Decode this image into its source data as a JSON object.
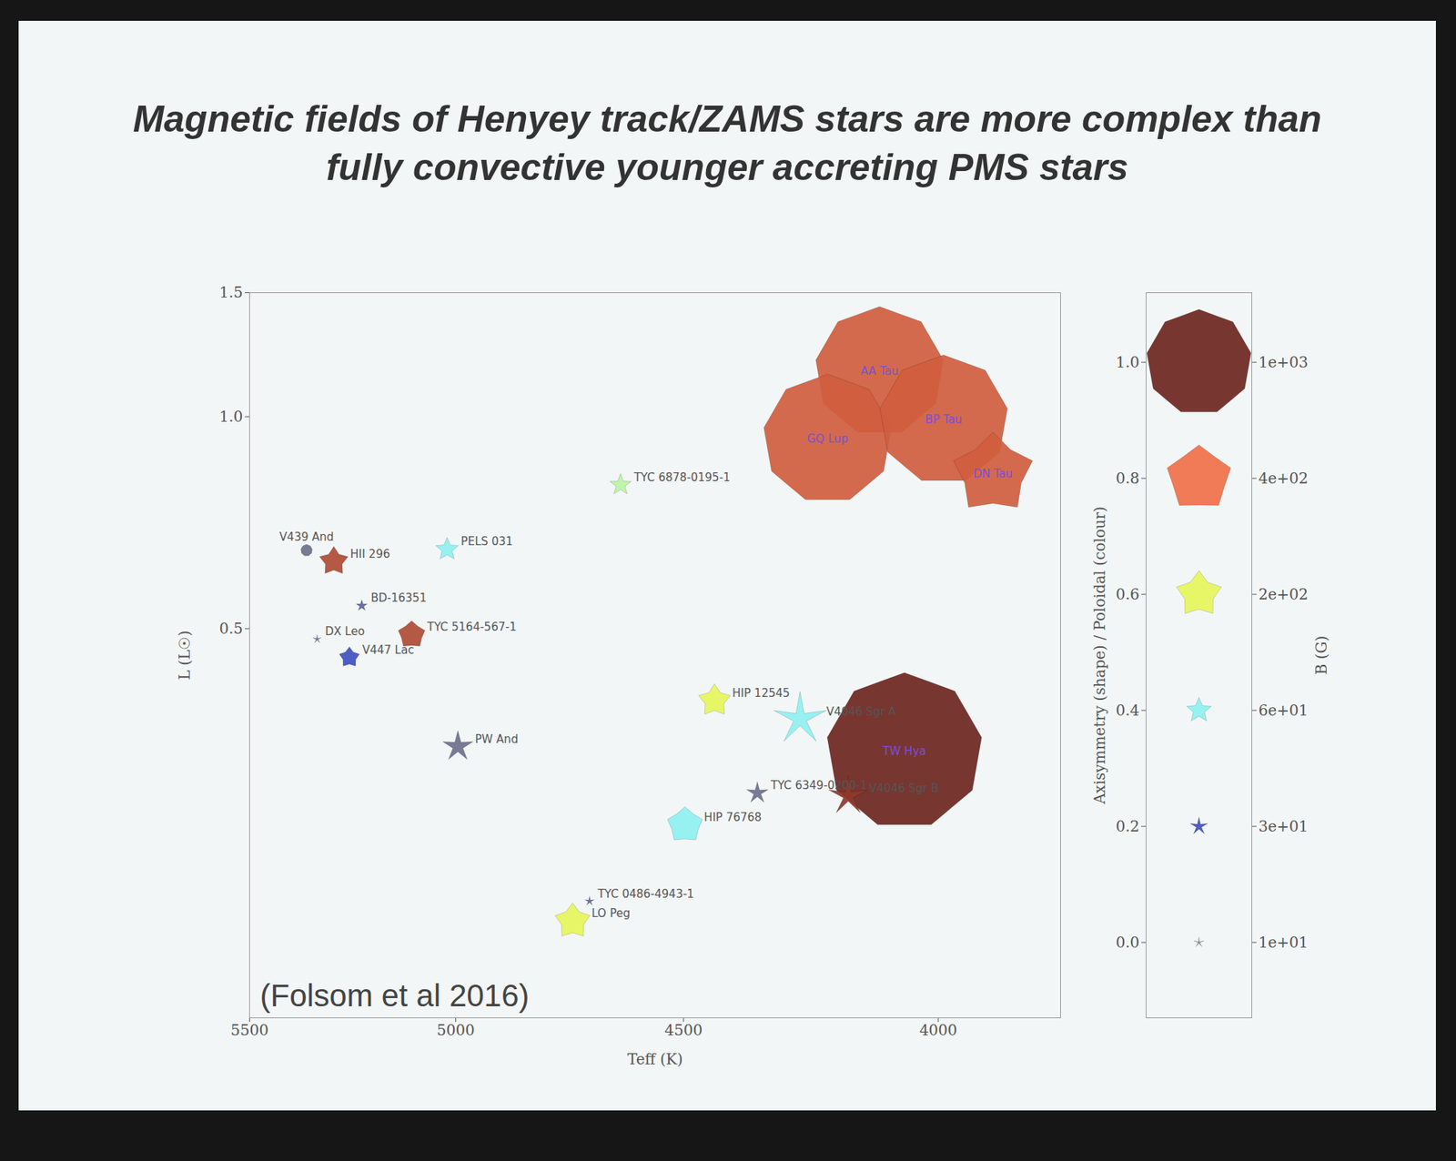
{
  "chart_data": {
    "type": "scatter",
    "title": "Magnetic fields of Henyey track/ZAMS stars are more complex than fully convective younger accreting PMS stars",
    "annotation": "(Folsom et al 2016)",
    "x_label": "Teff (K)",
    "y_label": "L (L☉)",
    "log": true,
    "xlim": [
      5500,
      3780
    ],
    "xticks": [
      5500,
      5000,
      4500,
      4000
    ],
    "ylim": [
      0.14,
      1.5
    ],
    "yticks": [
      0.5,
      {
        "value": 1,
        "label": "1.0"
      },
      1.5
    ],
    "points": {
      "names": [
        "TW Hya",
        "AA Tau",
        "GQ Lup",
        "BP Tau",
        "DN Tau",
        "V4046 Sgr A",
        "V4046 Sgr B",
        "HIP 12545",
        "HIP 76768",
        "LO Peg",
        "PW And",
        "TYC 6349-0200-1",
        "TYC 6878-0195-1",
        "TYC 0486-4943-1",
        "PELS 031",
        "HII 296",
        "TYC 5164-567-1",
        "V447 Lac",
        "BD-16351",
        "DX Leo",
        "V439 And"
      ],
      "x": [
        4063,
        4110,
        4210,
        3990,
        3900,
        4264,
        4170,
        4436,
        4497,
        4737,
        4995,
        4349,
        4633,
        4700,
        5020,
        5290,
        5103,
        5252,
        5222,
        5331,
        5357
      ],
      "y": [
        0.335,
        1.16,
        0.93,
        0.99,
        0.83,
        0.372,
        0.289,
        0.395,
        0.263,
        0.192,
        0.34,
        0.292,
        0.8,
        0.205,
        0.648,
        0.623,
        0.49,
        0.455,
        0.539,
        0.483,
        0.646
      ],
      "B": [
        2200,
        1500,
        1500,
        1500,
        620,
        270,
        150,
        100,
        120,
        120,
        90,
        45,
        45,
        8,
        50,
        80,
        70,
        40,
        12,
        7,
        12
      ],
      "axisymmetry": [
        1.0,
        0.95,
        0.95,
        0.95,
        0.7,
        0.15,
        0.15,
        0.55,
        0.75,
        0.6,
        0.25,
        0.25,
        0.35,
        0.2,
        0.4,
        0.55,
        0.75,
        0.6,
        0.3,
        0.1,
        1.0
      ],
      "poloidal": [
        1.0,
        0.85,
        0.85,
        0.85,
        0.85,
        0.4,
        0.95,
        0.6,
        0.4,
        0.6,
        0.05,
        0.05,
        0.5,
        0.1,
        0.4,
        0.9,
        0.9,
        0.2,
        0.1,
        0.1,
        0.05
      ]
    },
    "size_color_legend": {
      "label": "Axisymmetry (shape) / Poloidal (colour)",
      "b_label": "B (G)",
      "ylim": [
        -0.13,
        1.12
      ],
      "levels": [
        0,
        0.2,
        0.4,
        0.6,
        0.8,
        1
      ],
      "level_ticks": [
        {
          "value": 0,
          "label": "0.0"
        },
        0.2,
        0.4,
        0.6,
        0.8,
        {
          "value": 1,
          "label": "1.0"
        }
      ],
      "B": [
        10,
        30,
        60,
        200,
        400,
        1000
      ],
      "B_labels": [
        "1e+01",
        "3e+01",
        "6e+01",
        "2e+02",
        "4e+02",
        "1e+03"
      ]
    }
  }
}
